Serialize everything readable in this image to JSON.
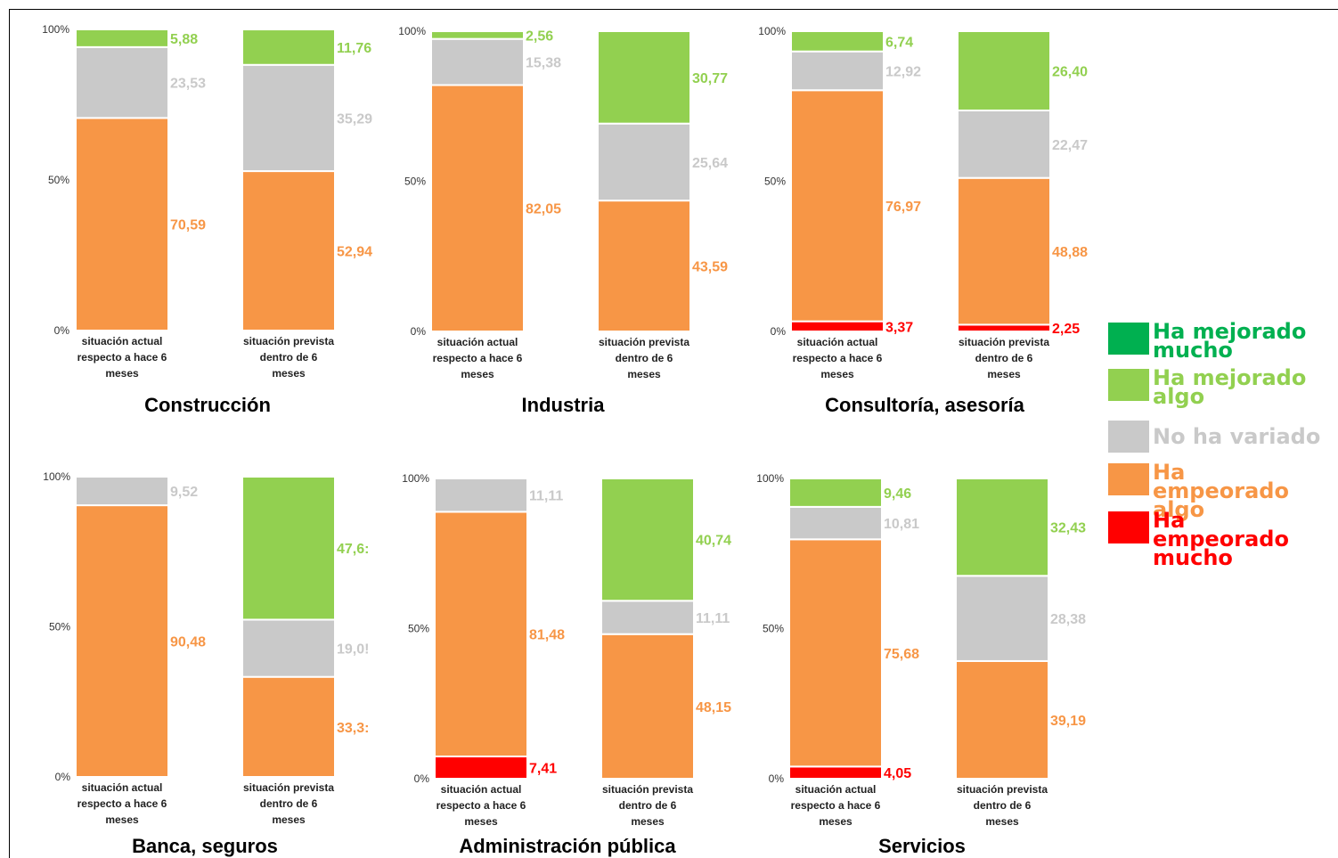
{
  "colors": {
    "mejorado_mucho": "#00b050",
    "mejorado_algo": "#92d050",
    "no_variado": "#c9c9c9",
    "empeorado_algo": "#f79646",
    "empeorado_mucho": "#ff0000"
  },
  "legend": [
    {
      "label": "Ha mejorado mucho",
      "key": "mejorado_mucho"
    },
    {
      "label": "Ha mejorado algo",
      "key": "mejorado_algo"
    },
    {
      "label": "No ha variado",
      "key": "no_variado"
    },
    {
      "label": "Ha empeorado algo",
      "key": "empeorado_algo"
    },
    {
      "label": "Ha empeorado mucho",
      "key": "empeorado_mucho"
    }
  ],
  "chart_data": [
    {
      "type": "bar",
      "stacked": true,
      "title": "Construcción",
      "categories": [
        "situación actual respecto a hace 6 meses",
        "situación prevista dentro de 6 meses"
      ],
      "yticks": [
        "0%",
        "50%",
        "100%"
      ],
      "ylim": [
        0,
        100
      ],
      "series": [
        {
          "name": "Ha empeorado mucho",
          "key": "empeorado_mucho",
          "values": [
            null,
            null
          ],
          "labels": [
            "",
            ""
          ]
        },
        {
          "name": "Ha empeorado algo",
          "key": "empeorado_algo",
          "values": [
            70.59,
            52.94
          ],
          "labels": [
            "70,59",
            "52,94"
          ]
        },
        {
          "name": "No ha variado",
          "key": "no_variado",
          "values": [
            23.53,
            35.29
          ],
          "labels": [
            "23,53",
            "35,29"
          ]
        },
        {
          "name": "Ha mejorado algo",
          "key": "mejorado_algo",
          "values": [
            5.88,
            11.76
          ],
          "labels": [
            "5,88",
            "11,76"
          ]
        },
        {
          "name": "Ha mejorado mucho",
          "key": "mejorado_mucho",
          "values": [
            null,
            null
          ],
          "labels": [
            "",
            ""
          ]
        }
      ]
    },
    {
      "type": "bar",
      "stacked": true,
      "title": "Industria",
      "categories": [
        "situación actual respecto a hace 6 meses",
        "situación prevista dentro de 6 meses"
      ],
      "yticks": [
        "0%",
        "50%",
        "100%"
      ],
      "ylim": [
        0,
        100
      ],
      "series": [
        {
          "name": "Ha empeorado mucho",
          "key": "empeorado_mucho",
          "values": [
            null,
            null
          ],
          "labels": [
            "",
            ""
          ]
        },
        {
          "name": "Ha empeorado algo",
          "key": "empeorado_algo",
          "values": [
            82.05,
            43.59
          ],
          "labels": [
            "82,05",
            "43,59"
          ]
        },
        {
          "name": "No ha variado",
          "key": "no_variado",
          "values": [
            15.38,
            25.64
          ],
          "labels": [
            "15,38",
            "25,64"
          ]
        },
        {
          "name": "Ha mejorado algo",
          "key": "mejorado_algo",
          "values": [
            2.56,
            30.77
          ],
          "labels": [
            "2,56",
            "30,77"
          ]
        },
        {
          "name": "Ha mejorado mucho",
          "key": "mejorado_mucho",
          "values": [
            null,
            null
          ],
          "labels": [
            "",
            ""
          ]
        }
      ]
    },
    {
      "type": "bar",
      "stacked": true,
      "title": "Consultoría, asesoría",
      "categories": [
        "situación actual respecto a hace 6 meses",
        "situación prevista dentro de 6 meses"
      ],
      "yticks": [
        "0%",
        "50%",
        "100%"
      ],
      "ylim": [
        0,
        100
      ],
      "series": [
        {
          "name": "Ha empeorado mucho",
          "key": "empeorado_mucho",
          "values": [
            3.37,
            2.25
          ],
          "labels": [
            "3,37",
            "2,25"
          ]
        },
        {
          "name": "Ha empeorado algo",
          "key": "empeorado_algo",
          "values": [
            76.97,
            48.88
          ],
          "labels": [
            "76,97",
            "48,88"
          ]
        },
        {
          "name": "No ha variado",
          "key": "no_variado",
          "values": [
            12.92,
            22.47
          ],
          "labels": [
            "12,92",
            "22,47"
          ]
        },
        {
          "name": "Ha mejorado algo",
          "key": "mejorado_algo",
          "values": [
            6.74,
            26.4
          ],
          "labels": [
            "6,74",
            "26,40"
          ]
        },
        {
          "name": "Ha mejorado mucho",
          "key": "mejorado_mucho",
          "values": [
            null,
            null
          ],
          "labels": [
            "",
            ""
          ]
        }
      ]
    },
    {
      "type": "bar",
      "stacked": true,
      "title": "Banca, seguros",
      "categories": [
        "situación actual respecto a hace 6 meses",
        "situación prevista dentro de 6 meses"
      ],
      "yticks": [
        "0%",
        "50%",
        "100%"
      ],
      "ylim": [
        0,
        100
      ],
      "series": [
        {
          "name": "Ha empeorado mucho",
          "key": "empeorado_mucho",
          "values": [
            null,
            null
          ],
          "labels": [
            "",
            ""
          ]
        },
        {
          "name": "Ha empeorado algo",
          "key": "empeorado_algo",
          "values": [
            90.48,
            33.33
          ],
          "labels": [
            "90,48",
            "33,3:"
          ]
        },
        {
          "name": "No ha variado",
          "key": "no_variado",
          "values": [
            9.52,
            19.05
          ],
          "labels": [
            "9,52",
            "19,0!"
          ]
        },
        {
          "name": "Ha mejorado algo",
          "key": "mejorado_algo",
          "values": [
            null,
            47.62
          ],
          "labels": [
            "",
            "47,6:"
          ]
        },
        {
          "name": "Ha mejorado mucho",
          "key": "mejorado_mucho",
          "values": [
            null,
            null
          ],
          "labels": [
            "",
            ""
          ]
        }
      ]
    },
    {
      "type": "bar",
      "stacked": true,
      "title": "Administración pública",
      "categories": [
        "situación actual respecto a hace 6 meses",
        "situación prevista dentro de 6 meses"
      ],
      "yticks": [
        "0%",
        "50%",
        "100%"
      ],
      "ylim": [
        0,
        100
      ],
      "series": [
        {
          "name": "Ha empeorado mucho",
          "key": "empeorado_mucho",
          "values": [
            7.41,
            null
          ],
          "labels": [
            "7,41",
            ""
          ]
        },
        {
          "name": "Ha empeorado algo",
          "key": "empeorado_algo",
          "values": [
            81.48,
            48.15
          ],
          "labels": [
            "81,48",
            "48,15"
          ]
        },
        {
          "name": "No ha variado",
          "key": "no_variado",
          "values": [
            11.11,
            11.11
          ],
          "labels": [
            "11,11",
            "11,11"
          ]
        },
        {
          "name": "Ha mejorado algo",
          "key": "mejorado_algo",
          "values": [
            null,
            40.74
          ],
          "labels": [
            "",
            "40,74"
          ]
        },
        {
          "name": "Ha mejorado mucho",
          "key": "mejorado_mucho",
          "values": [
            null,
            null
          ],
          "labels": [
            "",
            ""
          ]
        }
      ]
    },
    {
      "type": "bar",
      "stacked": true,
      "title": "Servicios",
      "categories": [
        "situación actual respecto a hace 6 meses",
        "situación prevista dentro de 6 meses"
      ],
      "yticks": [
        "0%",
        "50%",
        "100%"
      ],
      "ylim": [
        0,
        100
      ],
      "series": [
        {
          "name": "Ha empeorado mucho",
          "key": "empeorado_mucho",
          "values": [
            4.05,
            null
          ],
          "labels": [
            "4,05",
            ""
          ]
        },
        {
          "name": "Ha empeorado algo",
          "key": "empeorado_algo",
          "values": [
            75.68,
            39.19
          ],
          "labels": [
            "75,68",
            "39,19"
          ]
        },
        {
          "name": "No ha variado",
          "key": "no_variado",
          "values": [
            10.81,
            28.38
          ],
          "labels": [
            "10,81",
            "28,38"
          ]
        },
        {
          "name": "Ha mejorado algo",
          "key": "mejorado_algo",
          "values": [
            9.46,
            32.43
          ],
          "labels": [
            "9,46",
            "32,43"
          ]
        },
        {
          "name": "Ha mejorado mucho",
          "key": "mejorado_mucho",
          "values": [
            null,
            null
          ],
          "labels": [
            "",
            ""
          ]
        }
      ]
    }
  ]
}
